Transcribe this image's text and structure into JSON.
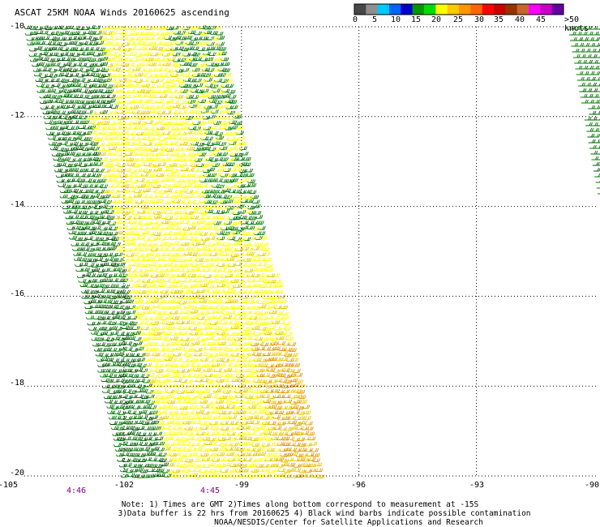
{
  "title": "ASCAT 25KM NOAA Winds 20160625 ascending",
  "color_scale": {
    "unit_label": ">50 knots",
    "tick_labels": [
      "0",
      "5",
      "10",
      "15",
      "20",
      "25",
      "30",
      "35",
      "40",
      "45"
    ],
    "colors": [
      "#474747",
      "#8f8f8f",
      "#00c8ff",
      "#0064ff",
      "#0000c8",
      "#009600",
      "#00dc00",
      "#ffff00",
      "#ffc800",
      "#ff9600",
      "#ff6400",
      "#ff0000",
      "#c80000",
      "#963200",
      "#c86432",
      "#ff00ff",
      "#c800c8",
      "#6400a0"
    ]
  },
  "map": {
    "lon_range": [
      -105,
      -90
    ],
    "lat_range": [
      -20,
      -10
    ],
    "lat_labels": [
      "-10",
      "-12",
      "-14",
      "-16",
      "-18",
      "-20"
    ],
    "lon_labels": [
      "-105",
      "-102",
      "-99",
      "-96",
      "-93",
      "-90"
    ],
    "time_labels": [
      "4:46",
      "4:45"
    ],
    "gridlines": "dotted every 3° lon, 2° lat",
    "barb_colors": {
      "green": "#007800",
      "dark_green": "#005a00",
      "yellow": "#ffff00",
      "gold": "#e6c800",
      "orange": "#e69600"
    }
  },
  "notes": {
    "line1": "Note: 1) Times are GMT 2)Times along bottom correspond to measurement at -15S",
    "line2": "3)Data buffer is 22 hrs from 20160625 4) Black wind barbs indicate possible contamination",
    "line3": "NOAA/NESDIS/Center for Satellite Applications and Research"
  }
}
